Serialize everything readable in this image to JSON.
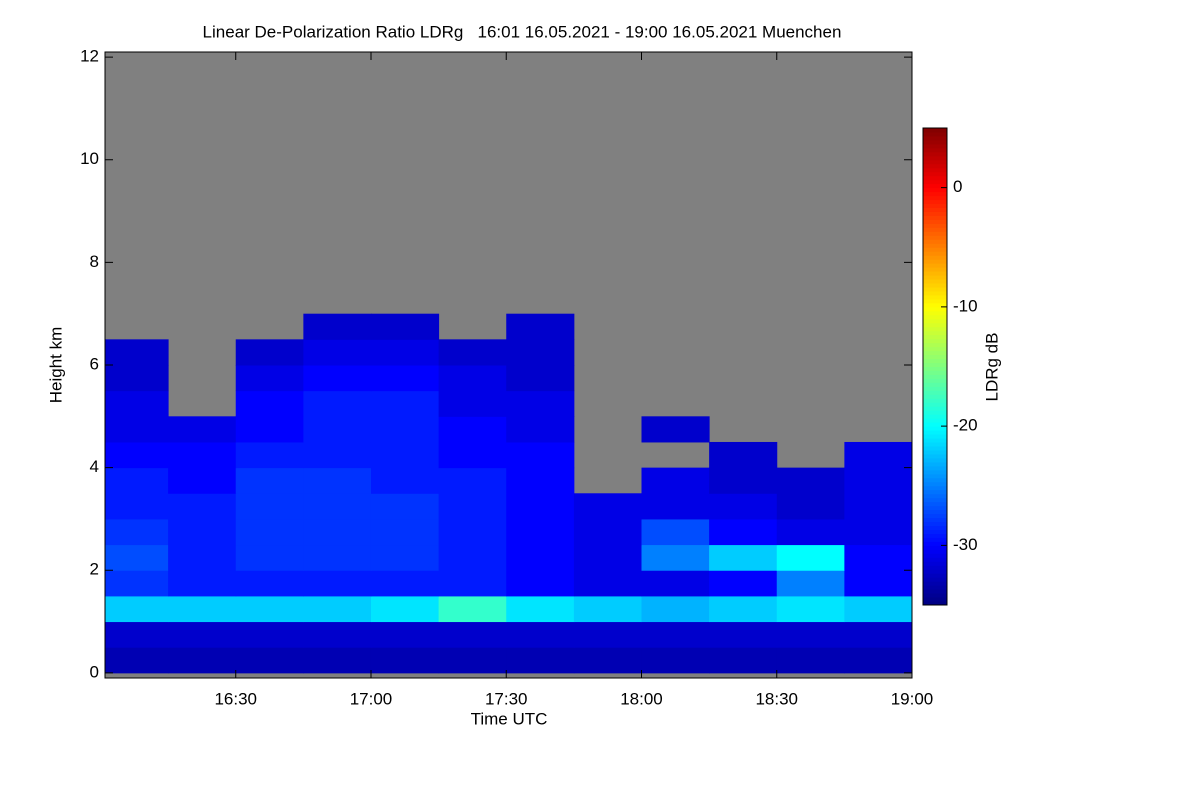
{
  "chart_data": {
    "type": "heatmap",
    "title": "Linear De-Polarization Ratio LDRg   16:01 16.05.2021 - 19:00 16.05.2021 Muenchen",
    "x_label": "Time UTC",
    "y_label": "Height km",
    "colorbar_label": "LDRg dB",
    "colormap": "jet",
    "background": "#808080",
    "xlim": [
      16.0167,
      19.0
    ],
    "xticks": [
      {
        "value": 16.5,
        "label": "16:30"
      },
      {
        "value": 17.0,
        "label": "17:00"
      },
      {
        "value": 17.5,
        "label": "17:30"
      },
      {
        "value": 18.0,
        "label": "18:00"
      },
      {
        "value": 18.5,
        "label": "18:30"
      },
      {
        "value": 19.0,
        "label": "19:00"
      }
    ],
    "ylim": [
      -0.1,
      12.1
    ],
    "yticks": [
      0,
      2,
      4,
      6,
      8,
      10,
      12
    ],
    "clim": [
      -35,
      5
    ],
    "cticks": [
      0,
      -10,
      -20,
      -30
    ],
    "x": [
      16.125,
      16.375,
      16.625,
      16.875,
      17.125,
      17.375,
      17.625,
      17.875,
      18.125,
      18.375,
      18.625,
      18.875
    ],
    "y": [
      0.25,
      0.75,
      1.25,
      1.75,
      2.25,
      2.75,
      3.25,
      3.75,
      4.25,
      4.75,
      5.25,
      5.75,
      6.25,
      6.75
    ],
    "z": [
      [
        -33,
        -33,
        -33,
        -33,
        -33,
        -33,
        -33,
        -33,
        -33,
        -33,
        -33,
        -33
      ],
      [
        -32,
        -32,
        -32,
        -32,
        -32,
        -32,
        -32,
        -32,
        -32,
        -32,
        -32,
        -32
      ],
      [
        -22,
        -22,
        -22,
        -22,
        -21,
        -18,
        -21,
        -22,
        -23,
        -22,
        -21,
        -22
      ],
      [
        -28,
        -29,
        -29,
        -29,
        -29,
        -29,
        -30,
        -31,
        -31,
        -30,
        -25,
        -30
      ],
      [
        -27,
        -29,
        -28,
        -28,
        -28,
        -29,
        -30,
        -31,
        -25,
        -22,
        -20,
        -30
      ],
      [
        -28,
        -29,
        -28,
        -28,
        -28,
        -29,
        -30,
        -31,
        -27,
        -30,
        -31,
        -31
      ],
      [
        -29,
        -29,
        -28,
        -28,
        -28,
        -29,
        -30,
        -31,
        -31,
        -31,
        -32,
        -31
      ],
      [
        -29,
        -30,
        -28,
        -28,
        -29,
        -29,
        -30,
        null,
        -31,
        -32,
        -32,
        -31
      ],
      [
        -30,
        -30,
        -29,
        -29,
        -29,
        -30,
        -30,
        null,
        null,
        -32,
        null,
        -31
      ],
      [
        -31,
        -31,
        -30,
        -29,
        -29,
        -30,
        -31,
        null,
        -32,
        null,
        null,
        null
      ],
      [
        -31,
        null,
        -30,
        -29,
        -29,
        -31,
        -31,
        null,
        null,
        null,
        null,
        null
      ],
      [
        -32,
        null,
        -31,
        -30,
        -30,
        -31,
        -32,
        null,
        null,
        null,
        null,
        null
      ],
      [
        -32,
        null,
        -32,
        -31,
        -31,
        -32,
        -32,
        null,
        null,
        null,
        null,
        null
      ],
      [
        null,
        null,
        null,
        -32,
        -32,
        null,
        -32,
        null,
        null,
        null,
        null,
        null
      ]
    ]
  }
}
